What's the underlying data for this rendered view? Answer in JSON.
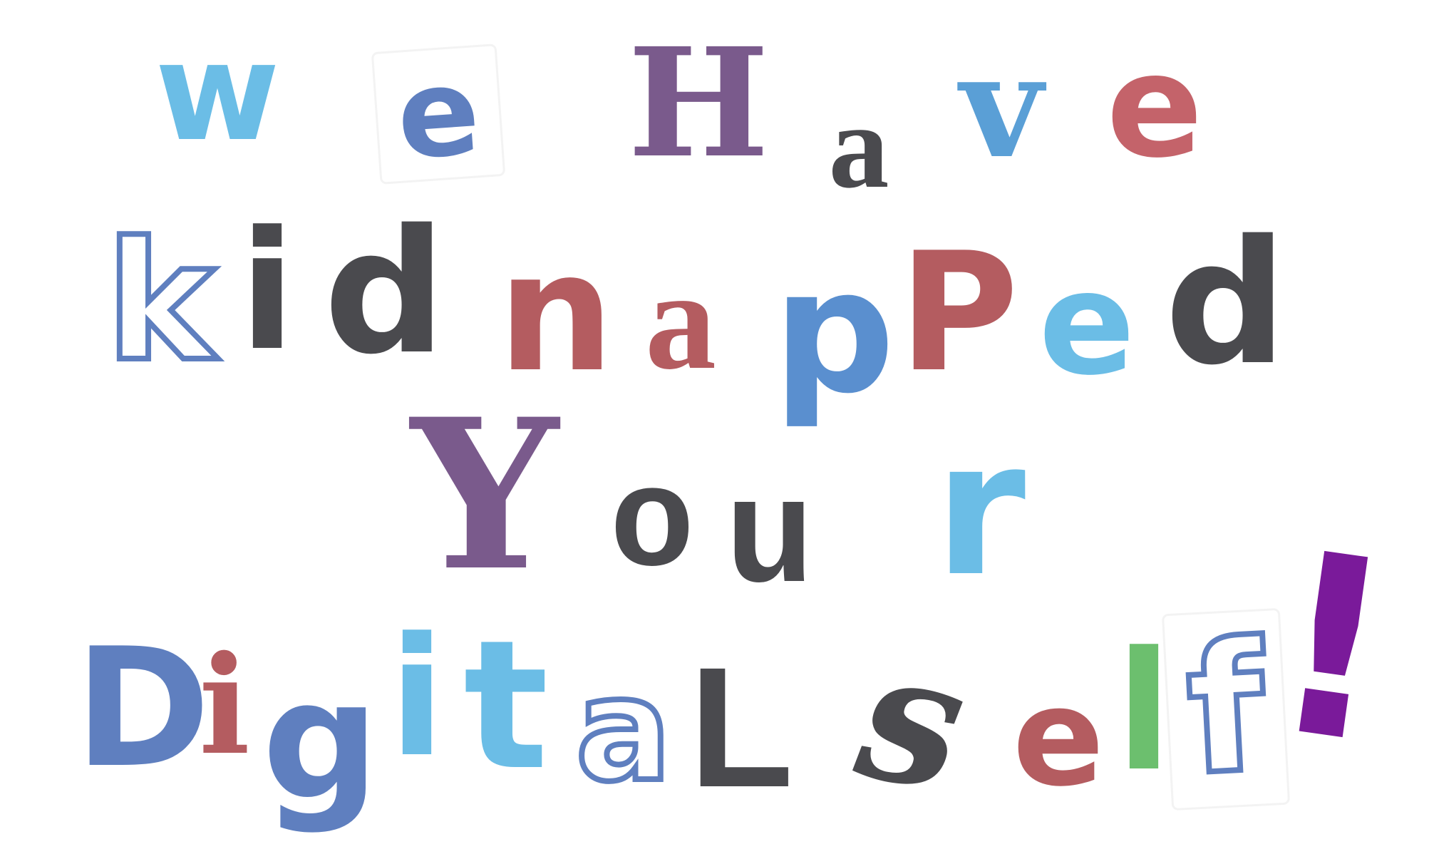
{
  "message": {
    "lines": [
      {
        "word_1": "We",
        "word_2": "Have"
      },
      {
        "word_1": "kidnapped"
      },
      {
        "word_1": "Your"
      },
      {
        "word_1": "Digital",
        "word_2": "self!"
      }
    ],
    "letters": {
      "line1": [
        "w",
        "e",
        "H",
        "a",
        "v",
        "e"
      ],
      "line2": [
        "k",
        "i",
        "d",
        "n",
        "a",
        "p",
        "P",
        "e",
        "d"
      ],
      "line3": [
        "Y",
        "o",
        "u",
        "r"
      ],
      "line4": [
        "D",
        "i",
        "g",
        "i",
        "t",
        "a",
        "L",
        "s",
        "e",
        "l",
        "f",
        "!"
      ]
    }
  },
  "colors": {
    "light_blue": "#6bbde6",
    "steel_blue": "#5f7fbf",
    "purple": "#7a5a8c",
    "dark_gray": "#4a4a4e",
    "rose": "#c4636a",
    "brick": "#b45c60",
    "mid_blue": "#5a8fcf",
    "green": "#6cbf6e",
    "violet": "#7a1a9a"
  }
}
